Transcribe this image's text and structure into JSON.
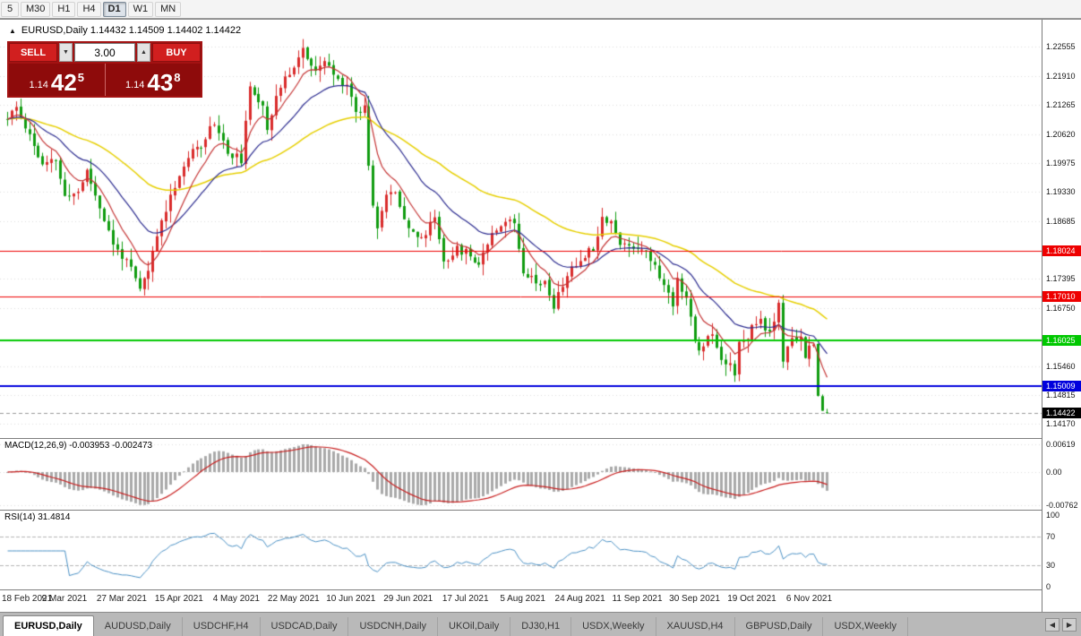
{
  "toolbar": {
    "timeframes": [
      {
        "label": "5",
        "active": false
      },
      {
        "label": "M30",
        "active": false
      },
      {
        "label": "H1",
        "active": false
      },
      {
        "label": "H4",
        "active": false
      },
      {
        "label": "D1",
        "active": true
      },
      {
        "label": "W1",
        "active": false
      },
      {
        "label": "MN",
        "active": false
      }
    ]
  },
  "chart": {
    "collapse_icon": "▲",
    "symbol_line": "EURUSD,Daily 1.14432 1.14509 1.14402 1.14422"
  },
  "trade_panel": {
    "sell_label": "SELL",
    "buy_label": "BUY",
    "volume": "3.00",
    "step_down_icon": "▼",
    "step_up_icon": "▲",
    "sell_price": {
      "base": "1.14",
      "big": "42",
      "sup": "5"
    },
    "buy_price": {
      "base": "1.14",
      "big": "43",
      "sup": "8"
    }
  },
  "main_axis": {
    "ticks": [
      "1.22555",
      "1.21910",
      "1.21265",
      "1.20620",
      "1.19975",
      "1.19330",
      "1.18685",
      "1.17395",
      "1.16750",
      "1.15460",
      "1.14815",
      "1.14170"
    ],
    "current_price": {
      "label": "1.14422",
      "color": "#000000"
    }
  },
  "macd_panel": {
    "label": "MACD(12,26,9) -0.003953 -0.002473",
    "scale_labels": [
      "0.00619",
      "0.00",
      "-0.00762"
    ]
  },
  "rsi_panel": {
    "label": "RSI(14) 31.4814",
    "scale_labels": [
      "100",
      "70",
      "30",
      "0"
    ]
  },
  "date_axis": [
    "18 Feb 2021",
    "9 Mar 2021",
    "27 Mar 2021",
    "15 Apr 2021",
    "4 May 2021",
    "22 May 2021",
    "10 Jun 2021",
    "29 Jun 2021",
    "17 Jul 2021",
    "5 Aug 2021",
    "24 Aug 2021",
    "11 Sep 2021",
    "30 Sep 2021",
    "19 Oct 2021",
    "6 Nov 2021"
  ],
  "tabs": {
    "items": [
      {
        "label": "EURUSD,Daily",
        "active": true
      },
      {
        "label": "AUDUSD,Daily",
        "active": false
      },
      {
        "label": "USDCHF,H4",
        "active": false
      },
      {
        "label": "USDCAD,Daily",
        "active": false
      },
      {
        "label": "USDCNH,Daily",
        "active": false
      },
      {
        "label": "UKOil,Daily",
        "active": false
      },
      {
        "label": "DJ30,H1",
        "active": false
      },
      {
        "label": "USDX,Weekly",
        "active": false
      },
      {
        "label": "XAUUSD,H4",
        "active": false
      },
      {
        "label": "GBPUSD,Daily",
        "active": false
      },
      {
        "label": "USDX,Weekly",
        "active": false
      }
    ],
    "scroll_left": "◀",
    "scroll_right": "▶"
  },
  "chart_data": {
    "type": "candlestick",
    "symbol": "EURUSD",
    "timeframe": "Daily",
    "title": "EURUSD,Daily",
    "ohlc_display": {
      "open": "1.14432",
      "high": "1.14509",
      "low": "1.14402",
      "close": "1.14422"
    },
    "y_range": [
      1.14,
      1.23
    ],
    "candle_count": 187,
    "bars_per_x_tick": 13,
    "x_tick_labels": [
      "18 Feb 2021",
      "9 Mar 2021",
      "27 Mar 2021",
      "15 Apr 2021",
      "4 May 2021",
      "22 May 2021",
      "10 Jun 2021",
      "29 Jun 2021",
      "17 Jul 2021",
      "5 Aug 2021",
      "24 Aug 2021",
      "11 Sep 2021",
      "30 Sep 2021",
      "19 Oct 2021",
      "6 Nov 2021"
    ],
    "close_keyframes": [
      [
        0,
        1.2095
      ],
      [
        2,
        1.212
      ],
      [
        5,
        1.206
      ],
      [
        8,
        1.199
      ],
      [
        11,
        1.2005
      ],
      [
        13,
        1.192
      ],
      [
        16,
        1.1935
      ],
      [
        18,
        1.198
      ],
      [
        21,
        1.19
      ],
      [
        24,
        1.1815
      ],
      [
        27,
        1.178
      ],
      [
        30,
        1.1715
      ],
      [
        32,
        1.176
      ],
      [
        35,
        1.187
      ],
      [
        38,
        1.195
      ],
      [
        41,
        1.201
      ],
      [
        44,
        1.204
      ],
      [
        47,
        1.209
      ],
      [
        50,
        1.202
      ],
      [
        53,
        1.2005
      ],
      [
        55,
        1.216
      ],
      [
        58,
        1.213
      ],
      [
        59,
        1.2075
      ],
      [
        61,
        1.2145
      ],
      [
        64,
        1.22
      ],
      [
        67,
        1.225
      ],
      [
        70,
        1.2195
      ],
      [
        72,
        1.2225
      ],
      [
        75,
        1.218
      ],
      [
        77,
        1.2175
      ],
      [
        79,
        1.211
      ],
      [
        81,
        1.2125
      ],
      [
        82,
        1.1995
      ],
      [
        83,
        1.191
      ],
      [
        84,
        1.186
      ],
      [
        86,
        1.1925
      ],
      [
        88,
        1.193
      ],
      [
        91,
        1.1855
      ],
      [
        94,
        1.1825
      ],
      [
        97,
        1.188
      ],
      [
        99,
        1.178
      ],
      [
        102,
        1.1805
      ],
      [
        104,
        1.18
      ],
      [
        107,
        1.1775
      ],
      [
        110,
        1.1845
      ],
      [
        113,
        1.187
      ],
      [
        115,
        1.1865
      ],
      [
        117,
        1.176
      ],
      [
        120,
        1.1735
      ],
      [
        122,
        1.173
      ],
      [
        124,
        1.168
      ],
      [
        127,
        1.175
      ],
      [
        129,
        1.177
      ],
      [
        131,
        1.1795
      ],
      [
        133,
        1.181
      ],
      [
        135,
        1.1875
      ],
      [
        137,
        1.187
      ],
      [
        139,
        1.1815
      ],
      [
        141,
        1.1815
      ],
      [
        143,
        1.181
      ],
      [
        145,
        1.1805
      ],
      [
        147,
        1.1765
      ],
      [
        149,
        1.1725
      ],
      [
        151,
        1.1685
      ],
      [
        152,
        1.174
      ],
      [
        154,
        1.17
      ],
      [
        156,
        1.16
      ],
      [
        157,
        1.158
      ],
      [
        158,
        1.1595
      ],
      [
        160,
        1.1625
      ],
      [
        162,
        1.156
      ],
      [
        164,
        1.1555
      ],
      [
        165,
        1.153
      ],
      [
        166,
        1.1595
      ],
      [
        168,
        1.16
      ],
      [
        169,
        1.1635
      ],
      [
        171,
        1.165
      ],
      [
        173,
        1.1615
      ],
      [
        175,
        1.168
      ],
      [
        176,
        1.156
      ],
      [
        178,
        1.1605
      ],
      [
        180,
        1.1615
      ],
      [
        181,
        1.1567
      ],
      [
        182,
        1.159
      ],
      [
        183,
        1.1593
      ],
      [
        184,
        1.1478
      ],
      [
        185,
        1.1448
      ],
      [
        186,
        1.14422
      ]
    ],
    "moving_averages": [
      {
        "period": 55,
        "color": "#e6cf00",
        "width": 1.5
      },
      {
        "period": 21,
        "color": "#2b2b8f",
        "width": 1.2
      },
      {
        "period": 8,
        "color": "#c43434",
        "width": 1.2
      }
    ],
    "horizontal_lines": [
      {
        "price": 1.18024,
        "label": "1.18024",
        "color": "#ee0000",
        "width": 1
      },
      {
        "price": 1.1701,
        "label": "1.17010",
        "color": "#ee0000",
        "width": 1
      },
      {
        "price": 1.16025,
        "label": "1.16025",
        "color": "#00c800",
        "width": 2
      },
      {
        "price": 1.15009,
        "label": "1.15009",
        "color": "#0000dd",
        "width": 2
      }
    ],
    "current_price": 1.14422,
    "indicators": [
      {
        "name": "MACD",
        "params": [
          12,
          26,
          9
        ],
        "values": [
          -0.003953,
          -0.002473
        ],
        "hist_color": "#a9a9a9",
        "signal_color": "#c81e1e",
        "scale_labels": [
          "0.00619",
          "0.00",
          "-0.00762"
        ]
      },
      {
        "name": "RSI",
        "params": [
          14
        ],
        "value": 31.4814,
        "color": "#4a90c4",
        "levels": [
          70,
          30
        ],
        "scale_labels": [
          "100",
          "70",
          "30",
          "0"
        ]
      }
    ],
    "colors": {
      "up": "#d92b2b",
      "down": "#109c10",
      "grid": "#dedede"
    }
  }
}
